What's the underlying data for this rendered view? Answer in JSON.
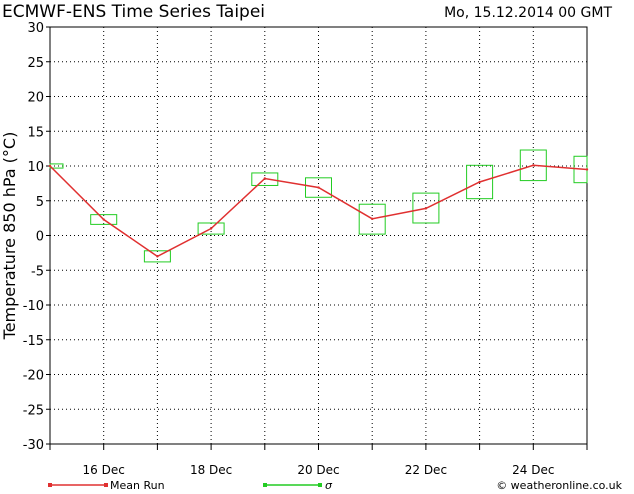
{
  "header": {
    "title": "ECMWF-ENS Time Series Taipei",
    "run_date": "Mo, 15.12.2014 00 GMT"
  },
  "footer": {
    "legend_mean": "Mean Run",
    "legend_sigma": "σ",
    "credit": "© weatheronline.co.uk"
  },
  "colors": {
    "mean_line": "#e03030",
    "sigma_box": "#22cc22",
    "grid": "#000000",
    "background": "#ffffff"
  },
  "chart_data": {
    "type": "line",
    "title": "ECMWF-ENS Time Series Taipei",
    "ylabel": "Temperature 850 hPa (°C)",
    "xlabel": "",
    "ylim": [
      -30,
      30
    ],
    "yticks": [
      30,
      25,
      20,
      15,
      10,
      5,
      0,
      -5,
      -10,
      -15,
      -20,
      -25,
      -30
    ],
    "x_range": [
      15,
      25
    ],
    "x_ticks": [
      {
        "x": 16,
        "label": "16 Dec"
      },
      {
        "x": 18,
        "label": "18 Dec"
      },
      {
        "x": 20,
        "label": "20 Dec"
      },
      {
        "x": 22,
        "label": "22 Dec"
      },
      {
        "x": 24,
        "label": "24 Dec"
      }
    ],
    "grid": true,
    "series": [
      {
        "name": "Mean Run",
        "x": [
          15,
          16,
          17,
          18,
          19,
          20,
          21,
          22,
          23,
          24,
          25
        ],
        "values": [
          10.0,
          2.3,
          -3.0,
          1.0,
          8.2,
          6.9,
          2.4,
          3.9,
          7.7,
          10.1,
          9.5
        ]
      }
    ],
    "sigma_ranges": [
      {
        "x": 15,
        "low": 9.7,
        "high": 10.3
      },
      {
        "x": 16,
        "low": 1.6,
        "high": 3.0
      },
      {
        "x": 17,
        "low": -3.8,
        "high": -2.2
      },
      {
        "x": 18,
        "low": 0.2,
        "high": 1.8
      },
      {
        "x": 19,
        "low": 7.2,
        "high": 9.0
      },
      {
        "x": 20,
        "low": 5.5,
        "high": 8.3
      },
      {
        "x": 21,
        "low": 0.2,
        "high": 4.5
      },
      {
        "x": 22,
        "low": 1.8,
        "high": 6.1
      },
      {
        "x": 23,
        "low": 5.3,
        "high": 10.1
      },
      {
        "x": 24,
        "low": 7.9,
        "high": 12.3
      },
      {
        "x": 25,
        "low": 7.6,
        "high": 11.4
      }
    ]
  }
}
